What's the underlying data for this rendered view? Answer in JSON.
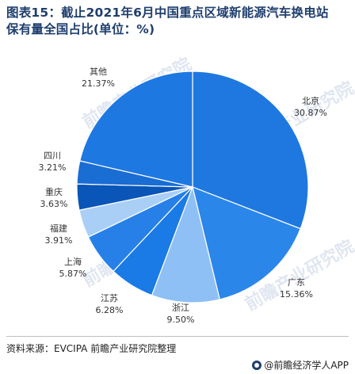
{
  "title_line1": "图表15：截止2021年6月中国重点区域新能源汽车换电站",
  "title_line2": "保有量全国占比(单位：%)",
  "source": "资料来源：EVCIPA 前瞻产业研究院整理",
  "brand": "@前瞻经济学人APP",
  "watermark": "前瞻产业研究院",
  "chart_data": {
    "type": "pie",
    "title": "截止2021年6月中国重点区域新能源汽车换电站保有量全国占比(单位：%)",
    "unit": "%",
    "categories": [
      "北京",
      "广东",
      "浙江",
      "江苏",
      "上海",
      "福建",
      "重庆",
      "四川",
      "其他"
    ],
    "values": [
      30.87,
      15.36,
      9.5,
      6.28,
      5.87,
      3.91,
      3.63,
      3.21,
      21.37
    ],
    "value_labels": [
      "30.87%",
      "15.36%",
      "9.50%",
      "6.28%",
      "5.87%",
      "3.91%",
      "3.63%",
      "3.21%",
      "21.37%"
    ],
    "colors": [
      "#1f78e0",
      "#2b86ea",
      "#8ec0f5",
      "#1a7ae6",
      "#2680e8",
      "#a9cff7",
      "#0a55b8",
      "#1a6dd2",
      "#1e78e2"
    ],
    "start_angle_deg": 0,
    "direction": "clockwise"
  }
}
